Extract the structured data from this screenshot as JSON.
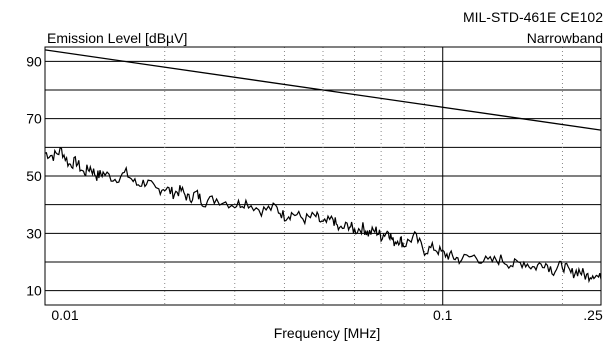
{
  "chart_data": {
    "type": "line",
    "title_lines": [
      "MIL-STD-461E CE102",
      "Narrowband"
    ],
    "ylabel": "Emission Level [dBµV]",
    "xlabel": "Frequency [MHz]",
    "x_scale": "log",
    "xlim": [
      0.01,
      0.25
    ],
    "ylim": [
      5,
      95
    ],
    "y_ticks": [
      10,
      30,
      50,
      70,
      90
    ],
    "y_tick_labels": [
      "10",
      "30",
      "50",
      "70",
      "90"
    ],
    "y_gridlines": [
      10,
      20,
      30,
      40,
      50,
      60,
      70,
      80,
      90
    ],
    "x_major_gridlines": [
      0.01,
      0.1
    ],
    "x_minor_gridlines": [
      0.02,
      0.03,
      0.04,
      0.05,
      0.06,
      0.07,
      0.08,
      0.09,
      0.2
    ],
    "x_tick_values": [
      0.01,
      0.1,
      0.25
    ],
    "x_tick_labels": [
      "0.01",
      "0.1",
      ".25"
    ],
    "grid": true,
    "series": [
      {
        "role": "limit",
        "color": "#000000",
        "x": [
          0.01,
          0.25
        ],
        "y": [
          94,
          66
        ]
      },
      {
        "role": "measured",
        "color": "#000000",
        "x": [
          0.01,
          0.0105,
          0.011,
          0.0115,
          0.012,
          0.0125,
          0.013,
          0.0135,
          0.014,
          0.015,
          0.016,
          0.017,
          0.018,
          0.019,
          0.02,
          0.021,
          0.022,
          0.023,
          0.024,
          0.025,
          0.027,
          0.03,
          0.032,
          0.035,
          0.038,
          0.04,
          0.042,
          0.045,
          0.048,
          0.05,
          0.053,
          0.055,
          0.058,
          0.06,
          0.063,
          0.065,
          0.068,
          0.07,
          0.073,
          0.075,
          0.078,
          0.08,
          0.085,
          0.09,
          0.095,
          0.1,
          0.105,
          0.11,
          0.12,
          0.13,
          0.14,
          0.15,
          0.16,
          0.17,
          0.18,
          0.19,
          0.2,
          0.21,
          0.22,
          0.23,
          0.24,
          0.25
        ],
        "y": [
          58,
          57,
          59,
          54,
          55,
          51,
          53,
          50,
          51,
          49,
          51,
          47,
          48,
          45,
          46,
          44,
          45,
          42,
          44,
          41,
          42,
          40,
          41,
          38,
          39,
          36,
          37,
          35,
          36,
          33,
          35,
          31,
          33,
          31,
          32,
          30,
          31,
          29,
          31,
          27,
          28,
          26,
          29,
          24,
          25,
          23,
          22,
          21,
          22,
          20,
          21,
          19,
          20,
          18,
          20,
          17,
          19,
          16,
          17,
          15,
          16,
          14
        ]
      }
    ]
  }
}
